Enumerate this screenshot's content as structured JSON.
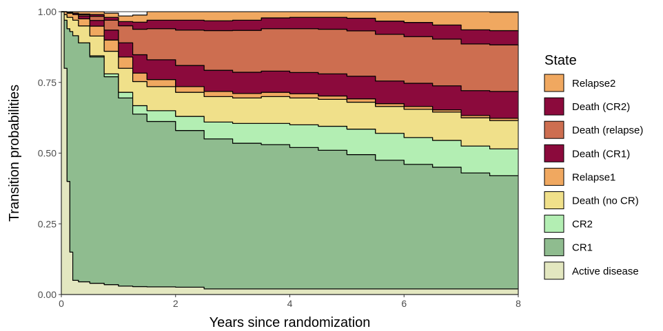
{
  "chart_data": {
    "type": "area",
    "stacked": true,
    "title": "",
    "xlabel": "Years since randomization",
    "ylabel": "Transition probabilities",
    "xlim": [
      0,
      8
    ],
    "ylim": [
      0,
      1
    ],
    "x_ticks": [
      0,
      2,
      4,
      6,
      8
    ],
    "x_tick_labels": [
      "0",
      "2",
      "4",
      "6",
      "8"
    ],
    "y_ticks": [
      0,
      0.25,
      0.5,
      0.75,
      1
    ],
    "y_tick_labels": [
      "0.00",
      "0.25",
      "0.50",
      "0.75",
      "1.00"
    ],
    "grid": false,
    "legend": {
      "title": "State",
      "position": "right",
      "entries": [
        "Relapse2",
        "Death (CR2)",
        "Death (relapse)",
        "Death (CR1)",
        "Relapse1",
        "Death (no CR)",
        "CR2",
        "CR1",
        "Active disease"
      ]
    },
    "x": [
      0,
      0.05,
      0.1,
      0.15,
      0.2,
      0.3,
      0.5,
      0.75,
      1,
      1.25,
      1.5,
      2,
      2.5,
      3,
      3.5,
      4,
      4.5,
      5,
      5.5,
      6,
      6.5,
      7,
      7.5,
      8
    ],
    "series": [
      {
        "name": "Active disease",
        "color": "#e3e7c0",
        "values": [
          1.0,
          0.8,
          0.4,
          0.15,
          0.05,
          0.045,
          0.04,
          0.035,
          0.03,
          0.028,
          0.027,
          0.026,
          0.02,
          0.02,
          0.02,
          0.02,
          0.02,
          0.02,
          0.02,
          0.02,
          0.02,
          0.02,
          0.02,
          0.02
        ]
      },
      {
        "name": "CR1",
        "color": "#8fbc8f",
        "values": [
          0.0,
          0.17,
          0.54,
          0.78,
          0.865,
          0.845,
          0.8,
          0.735,
          0.665,
          0.61,
          0.585,
          0.554,
          0.53,
          0.515,
          0.51,
          0.5,
          0.49,
          0.475,
          0.455,
          0.44,
          0.43,
          0.41,
          0.4,
          0.4
        ]
      },
      {
        "name": "CR2",
        "color": "#b3eeb3",
        "values": [
          0.0,
          0.0,
          0.0,
          0.0,
          0.0,
          0.0,
          0.004,
          0.01,
          0.02,
          0.03,
          0.038,
          0.05,
          0.06,
          0.07,
          0.075,
          0.08,
          0.085,
          0.09,
          0.095,
          0.095,
          0.095,
          0.095,
          0.095,
          0.095
        ]
      },
      {
        "name": "Death (no CR)",
        "color": "#f0e08a",
        "values": [
          0.0,
          0.02,
          0.04,
          0.05,
          0.055,
          0.06,
          0.07,
          0.08,
          0.085,
          0.085,
          0.085,
          0.085,
          0.09,
          0.09,
          0.095,
          0.095,
          0.095,
          0.095,
          0.095,
          0.1,
          0.1,
          0.1,
          0.1,
          0.1
        ]
      },
      {
        "name": "Relapse1",
        "color": "#f0a860",
        "values": [
          0.0,
          0.01,
          0.015,
          0.015,
          0.02,
          0.025,
          0.035,
          0.04,
          0.04,
          0.03,
          0.025,
          0.02,
          0.018,
          0.016,
          0.015,
          0.015,
          0.012,
          0.012,
          0.01,
          0.01,
          0.008,
          0.008,
          0.008,
          0.0
        ]
      },
      {
        "name": "Death (CR1)",
        "color": "#8b0a3c",
        "values": [
          0.0,
          0.0,
          0.002,
          0.002,
          0.005,
          0.01,
          0.02,
          0.035,
          0.05,
          0.065,
          0.07,
          0.075,
          0.075,
          0.075,
          0.075,
          0.075,
          0.078,
          0.08,
          0.08,
          0.082,
          0.085,
          0.088,
          0.095,
          0.1
        ]
      },
      {
        "name": "Death (relapse)",
        "color": "#cd6e50",
        "values": [
          0.0,
          0.0,
          0.0,
          0.0,
          0.0,
          0.005,
          0.015,
          0.035,
          0.06,
          0.09,
          0.11,
          0.125,
          0.14,
          0.148,
          0.15,
          0.155,
          0.158,
          0.16,
          0.165,
          0.165,
          0.165,
          0.165,
          0.165,
          0.165
        ]
      },
      {
        "name": "Death (CR2)",
        "color": "#8b0a3c",
        "values": [
          0.0,
          0.0,
          0.0,
          0.0,
          0.0,
          0.002,
          0.006,
          0.01,
          0.015,
          0.025,
          0.03,
          0.035,
          0.035,
          0.036,
          0.038,
          0.04,
          0.042,
          0.045,
          0.047,
          0.05,
          0.05,
          0.05,
          0.05,
          0.05
        ]
      },
      {
        "name": "Relapse2",
        "color": "#f0a860",
        "values": [
          0.0,
          0.0,
          0.001,
          0.003,
          0.005,
          0.008,
          0.01,
          0.015,
          0.02,
          0.025,
          0.03,
          0.03,
          0.032,
          0.03,
          0.022,
          0.02,
          0.02,
          0.023,
          0.033,
          0.038,
          0.047,
          0.064,
          0.065,
          0.07
        ]
      }
    ]
  }
}
